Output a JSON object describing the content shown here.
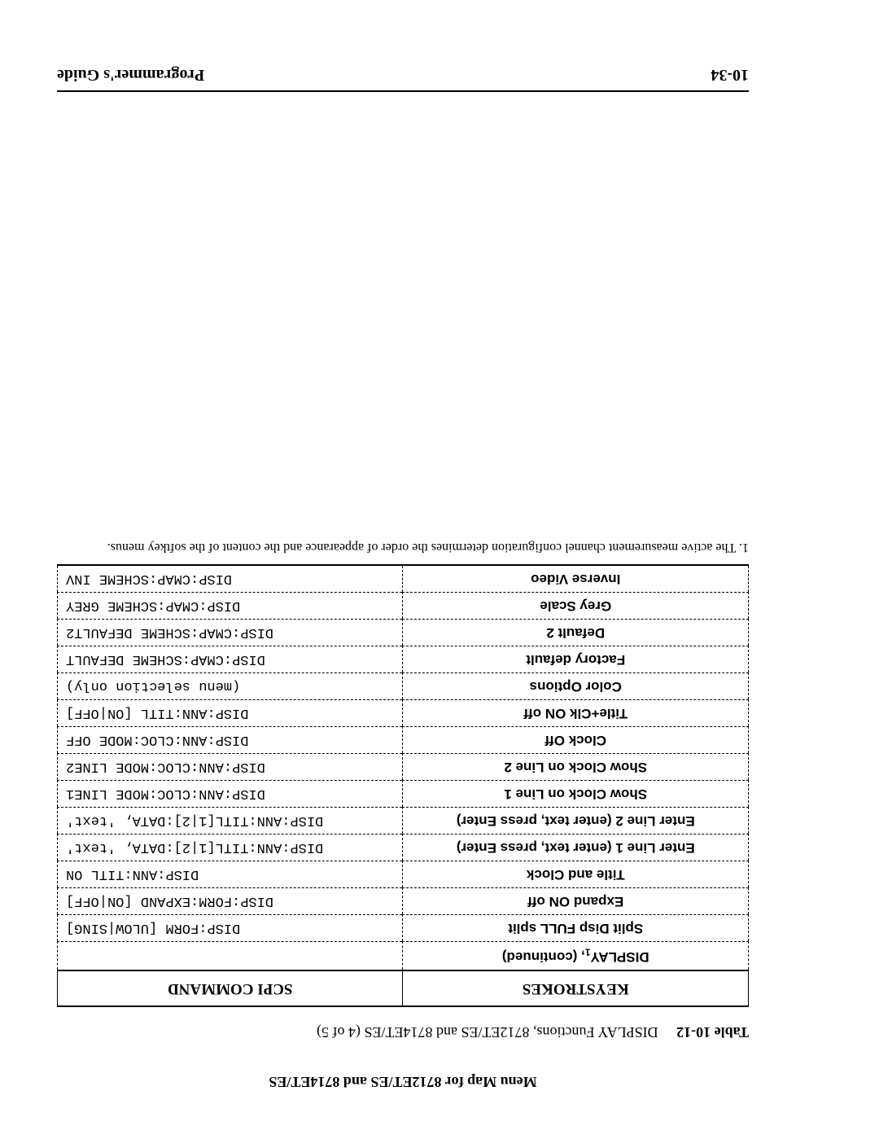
{
  "running_head": "Menu Map for 8712ET/ES and 8714ET/ES",
  "caption_label": "Table 10-12",
  "caption_text": "DISPLAY Functions, 8712ET/ES and 8714ET/ES (4 of 5)",
  "headers": {
    "keys": "KEYSTROKES",
    "cmd": "SCPI COMMAND"
  },
  "rows": [
    {
      "key_html": "DISPLAY<span class='sub'>1</span>, (continued)",
      "cmd": ""
    },
    {
      "key": "Split Disp FULL split",
      "cmd": "DISP:FORM [ULOW|SING]"
    },
    {
      "key": "Expand ON off",
      "cmd": "DISP:FORM:EXPAND [ON|OFF]"
    },
    {
      "key": "Title and Clock",
      "cmd": "DISP:ANN:TITL ON"
    },
    {
      "key": "Enter Line 1 (enter text, press Enter)",
      "cmd": "DISP:ANN:TITL[1|2]:DATA, 'text'"
    },
    {
      "key": "Enter Line 2 (enter text, press Enter)",
      "cmd": "DISP:ANN:TITL[1|2]:DATA, 'text'"
    },
    {
      "key": "Show Clock on Line 1",
      "cmd": "DISP:ANN:CLOC:MODE LINE1"
    },
    {
      "key": "Show Clock on Line 2",
      "cmd": "DISP:ANN:CLOC:MODE LINE2"
    },
    {
      "key": "Clock Off",
      "cmd": "DISP:ANN:CLOC:MODE OFF"
    },
    {
      "key": "Title+Clk ON off",
      "cmd": "DISP:ANN:TITL [ON|OFF]"
    },
    {
      "key": "Color Options",
      "cmd": "(menu selection only)"
    },
    {
      "key": "Factory default",
      "cmd": "DISP:CMAP:SCHEME DEFAULT"
    },
    {
      "key": "Default 2",
      "cmd": "DISP:CMAP:SCHEME DEFAULT2"
    },
    {
      "key": "Grey Scale",
      "cmd": "DISP:CMAP:SCHEME GREY"
    },
    {
      "key": "Inverse Video",
      "cmd": "DISP:CMAP:SCHEME INV"
    }
  ],
  "footnote": "1. The active measurement channel configuration determines the order of appearance and the content of the softkey menus.",
  "footer": {
    "page": "10-34",
    "title": "Programmer's Guide"
  },
  "hole_count": 16
}
